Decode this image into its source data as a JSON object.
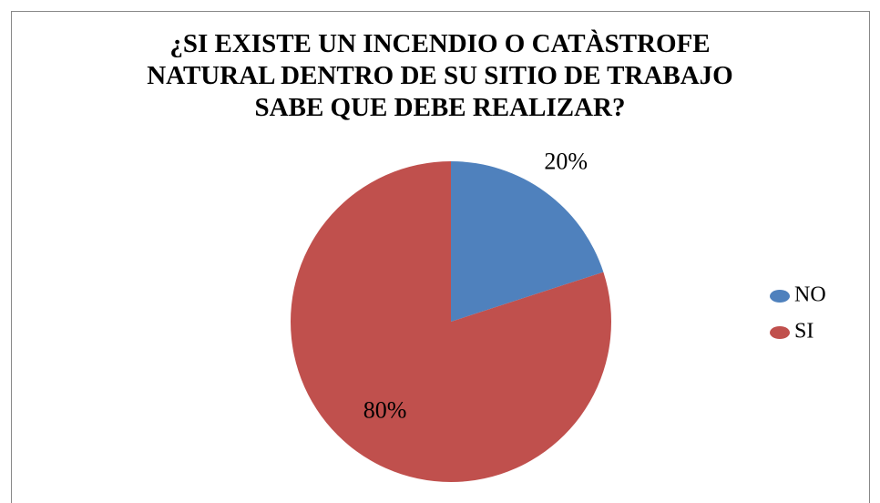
{
  "chart_data": {
    "type": "pie",
    "title": "¿SI EXISTE UN INCENDIO O CATÀSTROFE NATURAL DENTRO DE SU SITIO DE TRABAJO SABE QUE DEBE REALIZAR?",
    "categories": [
      "NO",
      "SI"
    ],
    "values": [
      20,
      80
    ],
    "value_labels": [
      "20%",
      "80%"
    ],
    "colors": [
      "#4f81bd",
      "#c0504d"
    ],
    "legend": "right"
  }
}
